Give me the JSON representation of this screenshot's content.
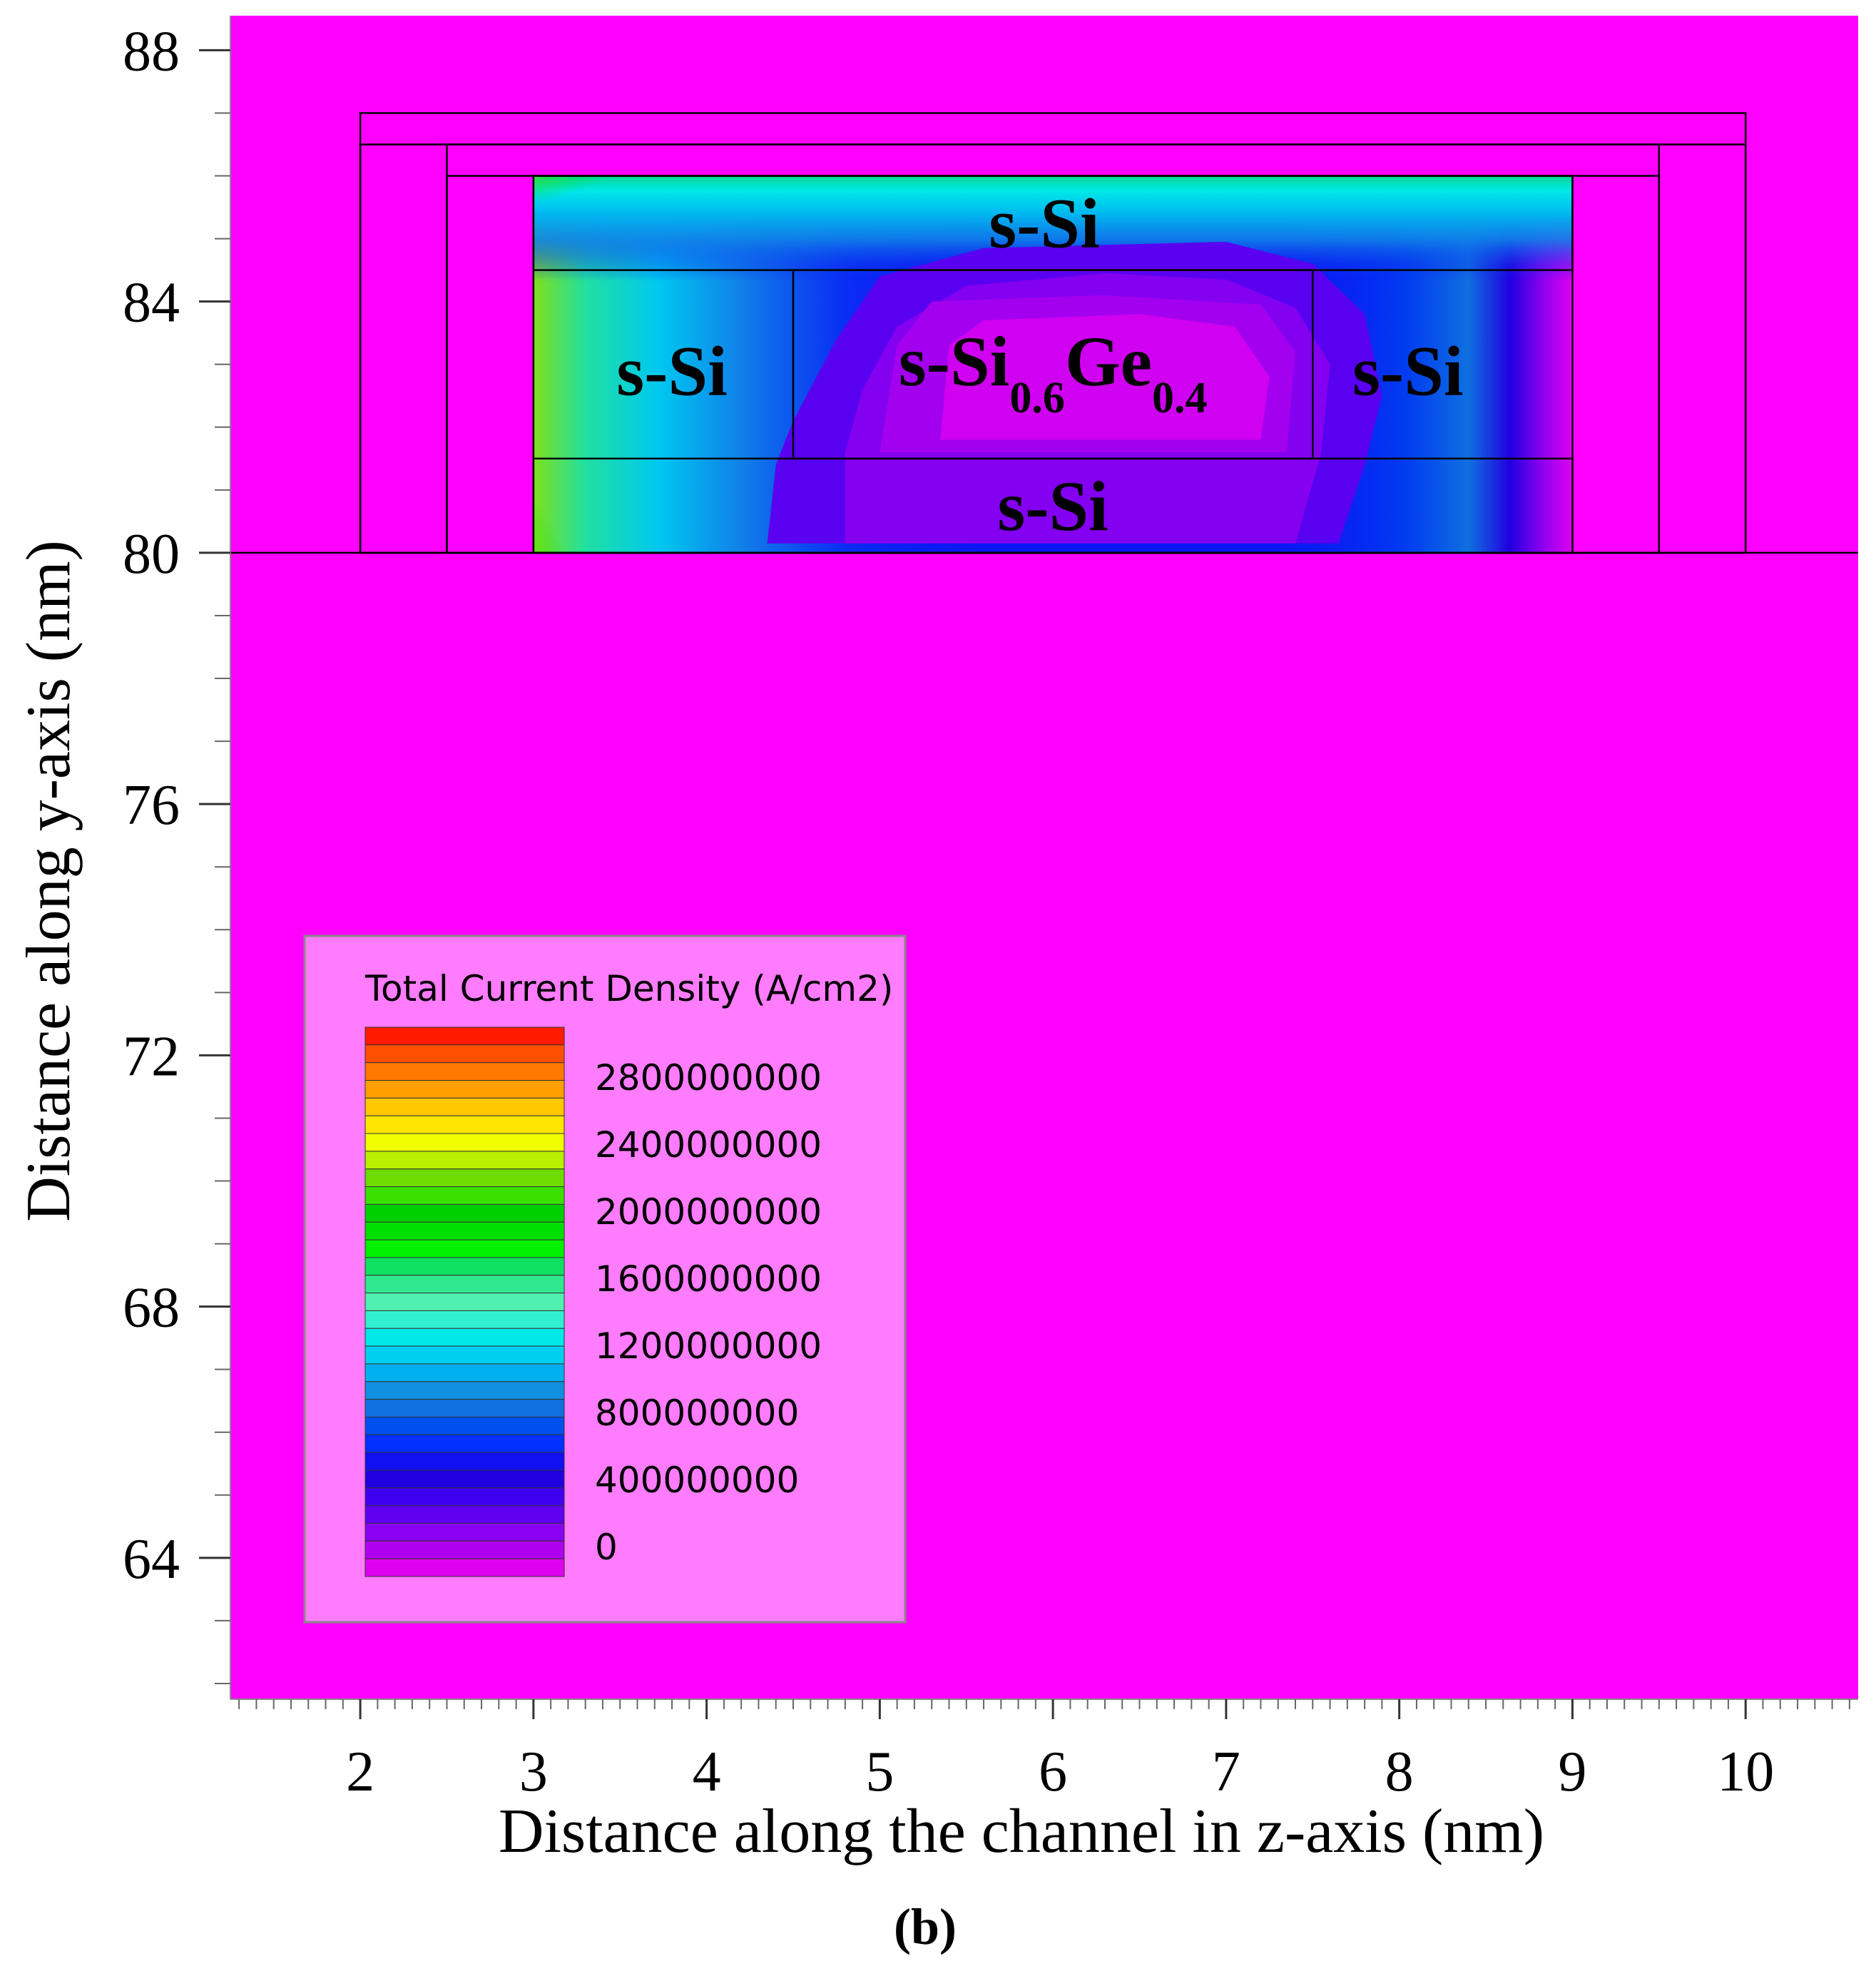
{
  "chart_data": {
    "type": "heatmap",
    "title": "",
    "subtitle": "(b)",
    "xlabel": "Distance along the channel in z-axis (nm)",
    "ylabel": "Distance along y-axis (nm)",
    "xlim": [
      1.25,
      10.65
    ],
    "ylim": [
      61.75,
      88.55
    ],
    "x_ticks": [
      2,
      3,
      4,
      5,
      6,
      7,
      8,
      9,
      10
    ],
    "y_ticks": [
      64,
      68,
      72,
      76,
      80,
      84,
      88
    ],
    "x_minor_step": 0.1,
    "y_minor_step": 1,
    "background_color": "#ff00ff",
    "structure": {
      "gate_outer": {
        "z": [
          2,
          10
        ],
        "y": [
          80,
          87
        ]
      },
      "oxide_layer": {
        "z": [
          2,
          10
        ],
        "y": [
          80,
          86.5
        ]
      },
      "spacer": {
        "z": [
          2.5,
          9.5
        ],
        "y": [
          80,
          86.5
        ]
      },
      "inner_gate": {
        "z": [
          2.5,
          9.5
        ],
        "y": [
          80,
          86
        ]
      },
      "channel": {
        "z": [
          3,
          9
        ],
        "y": [
          80,
          86
        ]
      },
      "top_layer": {
        "z": [
          3,
          9
        ],
        "y": [
          84.5,
          86
        ]
      },
      "bottom_layer": {
        "z": [
          3,
          9
        ],
        "y": [
          80,
          81.5
        ]
      },
      "core": {
        "z": [
          4.5,
          7.5
        ],
        "y": [
          81.5,
          84.5
        ]
      },
      "substrate_top_y": 80
    },
    "region_labels": [
      {
        "text": "s-Si",
        "z": 5.95,
        "y": 85.25
      },
      {
        "text": "s-Si",
        "z": 3.8,
        "y": 82.9
      },
      {
        "text": "s-Si",
        "z": 8.05,
        "y": 82.9
      },
      {
        "text": "s-Si",
        "z": 6,
        "y": 80.75
      }
    ],
    "core_label": {
      "base": "s-Si",
      "sub1": "0.6",
      "mid": "Ge",
      "sub2": "0.4",
      "z": 6,
      "y": 82.95
    },
    "legend": {
      "title": "Total Current Density (A/cm2)",
      "placement": "bottom-left",
      "labels": [
        "2800000000",
        "2400000000",
        "2000000000",
        "1600000000",
        "1200000000",
        "800000000",
        "400000000",
        "0"
      ],
      "color_bands_top_to_bottom": [
        "#ff1a00",
        "#ff5000",
        "#ff7800",
        "#ffa000",
        "#ffc800",
        "#ffe600",
        "#f0ff00",
        "#b8f000",
        "#6fdc00",
        "#3ae000",
        "#00d000",
        "#00e000",
        "#00f000",
        "#10e060",
        "#30e890",
        "#50f0b0",
        "#30f0d0",
        "#00e8e8",
        "#00d0f0",
        "#00b0f0",
        "#1090e0",
        "#1070e0",
        "#0050f0",
        "#0030ff",
        "#1010f0",
        "#2000e0",
        "#4000f0",
        "#6000f0",
        "#8a00f0",
        "#b000f0",
        "#e000f0"
      ]
    },
    "contours": [
      {
        "level": 80000000,
        "color": "#5a00f0",
        "points": [
          [
            4.35,
            80.15
          ],
          [
            4.4,
            81.4
          ],
          [
            4.5,
            82.1
          ],
          [
            4.75,
            83.4
          ],
          [
            5.0,
            84.4
          ],
          [
            5.6,
            84.85
          ],
          [
            7.0,
            84.95
          ],
          [
            7.5,
            84.6
          ],
          [
            7.8,
            83.8
          ],
          [
            7.9,
            82.5
          ],
          [
            7.8,
            81.4
          ],
          [
            7.65,
            80.15
          ]
        ]
      },
      {
        "level": 120000000,
        "color": "#8400f0",
        "points": [
          [
            4.8,
            80.15
          ],
          [
            4.8,
            81.6
          ],
          [
            4.9,
            82.6
          ],
          [
            5.1,
            83.6
          ],
          [
            5.5,
            84.25
          ],
          [
            6.3,
            84.45
          ],
          [
            7.0,
            84.35
          ],
          [
            7.4,
            83.9
          ],
          [
            7.6,
            83.0
          ],
          [
            7.55,
            81.6
          ],
          [
            7.4,
            80.15
          ]
        ]
      },
      {
        "level": 160000000,
        "color": "#a400f0",
        "points": [
          [
            5.0,
            81.6
          ],
          [
            5.1,
            83.3
          ],
          [
            5.3,
            84.0
          ],
          [
            6.3,
            84.1
          ],
          [
            7.2,
            83.95
          ],
          [
            7.4,
            83.2
          ],
          [
            7.35,
            81.6
          ]
        ]
      },
      {
        "level": 200000000,
        "color": "#d000f0",
        "points": [
          [
            5.35,
            81.8
          ],
          [
            5.4,
            83.3
          ],
          [
            5.6,
            83.7
          ],
          [
            6.5,
            83.8
          ],
          [
            7.05,
            83.6
          ],
          [
            7.25,
            82.8
          ],
          [
            7.2,
            81.8
          ]
        ]
      }
    ]
  }
}
